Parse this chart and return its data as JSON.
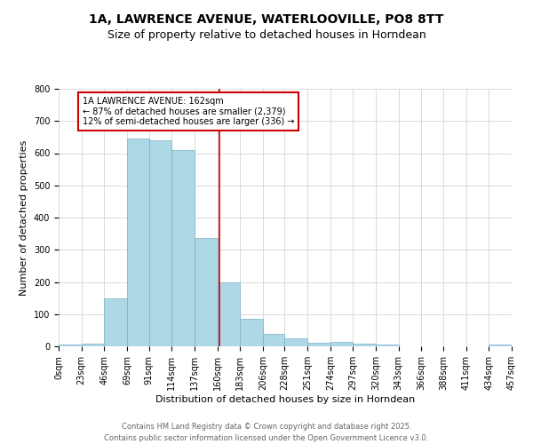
{
  "title_line1": "1A, LAWRENCE AVENUE, WATERLOOVILLE, PO8 8TT",
  "title_line2": "Size of property relative to detached houses in Horndean",
  "xlabel": "Distribution of detached houses by size in Horndean",
  "ylabel": "Number of detached properties",
  "annotation_title": "1A LAWRENCE AVENUE: 162sqm",
  "annotation_line2": "← 87% of detached houses are smaller (2,379)",
  "annotation_line3": "12% of semi-detached houses are larger (336) →",
  "property_size": 162,
  "bar_color": "#add8e6",
  "bar_edge_color": "#7aafc4",
  "vline_color": "#cc0000",
  "annotation_box_edgecolor": "#cc0000",
  "grid_color": "#cccccc",
  "background_color": "#ffffff",
  "bin_edges": [
    0,
    23,
    46,
    69,
    91,
    114,
    137,
    160,
    183,
    206,
    228,
    251,
    274,
    297,
    320,
    343,
    366,
    388,
    411,
    434,
    457
  ],
  "bin_counts": [
    5,
    7,
    148,
    645,
    640,
    610,
    337,
    200,
    85,
    40,
    26,
    10,
    15,
    8,
    5,
    0,
    0,
    0,
    0,
    5
  ],
  "ylim": [
    0,
    800
  ],
  "yticks": [
    0,
    100,
    200,
    300,
    400,
    500,
    600,
    700,
    800
  ],
  "tick_labels": [
    "0sqm",
    "23sqm",
    "46sqm",
    "69sqm",
    "91sqm",
    "114sqm",
    "137sqm",
    "160sqm",
    "183sqm",
    "206sqm",
    "228sqm",
    "251sqm",
    "274sqm",
    "297sqm",
    "320sqm",
    "343sqm",
    "366sqm",
    "388sqm",
    "411sqm",
    "434sqm",
    "457sqm"
  ],
  "footer_line1": "Contains HM Land Registry data © Crown copyright and database right 2025.",
  "footer_line2": "Contains public sector information licensed under the Open Government Licence v3.0.",
  "title_fontsize": 10,
  "subtitle_fontsize": 9,
  "axis_label_fontsize": 8,
  "tick_fontsize": 7,
  "annotation_fontsize": 7,
  "footer_fontsize": 6
}
